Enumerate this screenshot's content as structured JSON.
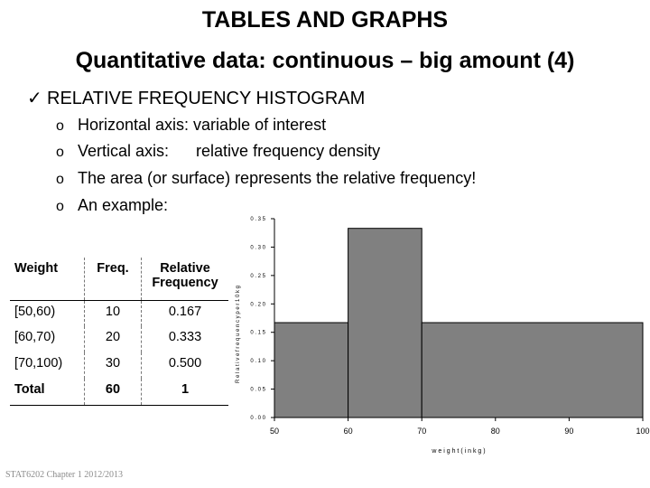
{
  "title_line1": "TABLES AND GRAPHS",
  "title_line2": "Quantitative data: continuous – big amount (4)",
  "main_bullet": "RELATIVE FREQUENCY HISTOGRAM",
  "check_icon": "✓",
  "sub_marker": "o",
  "sub_items": [
    "Horizontal axis: variable of interest",
    "Vertical axis:      relative frequency density",
    "The area (or surface) represents the relative frequency!",
    "An example:"
  ],
  "table": {
    "headers": [
      "Weight",
      "Freq.",
      "Relative Frequency"
    ],
    "rows": [
      [
        "[50,60)",
        "10",
        "0.167"
      ],
      [
        "[60,70)",
        "20",
        "0.333"
      ],
      [
        "[70,100)",
        "30",
        "0.500"
      ],
      [
        "Total",
        "60",
        "1"
      ]
    ]
  },
  "colors": {
    "bar_fill": "#808080",
    "bar_stroke": "#000000"
  },
  "chart_data": {
    "type": "bar",
    "bins": [
      {
        "from": 50,
        "to": 60,
        "density": 0.167
      },
      {
        "from": 60,
        "to": 70,
        "density": 0.333
      },
      {
        "from": 70,
        "to": 100,
        "density": 0.167
      }
    ],
    "xlabel": "w e i g h t   ( i n   k g )",
    "ylabel": "R e l a t i v e   f r e q u e n c y   p e r   1 0   k g",
    "x_ticks": [
      "50",
      "60",
      "70",
      "80",
      "90",
      "100"
    ],
    "y_ticks": [
      "0 . 0 0",
      "0 . 0 5",
      "0 . 1 0",
      "0 . 1 5",
      "0 . 2 0",
      "0 . 2 5",
      "0 . 3 0",
      "0 . 3 5"
    ],
    "xlim": [
      50,
      100
    ],
    "ylim": [
      0,
      0.35
    ],
    "grid": false
  },
  "footer": "STAT6202 Chapter 1 2012/2013"
}
